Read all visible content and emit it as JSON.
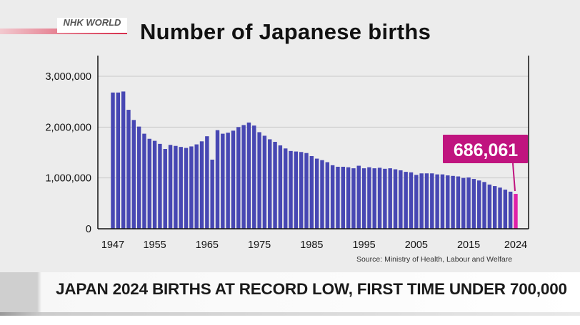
{
  "broadcaster": {
    "name": "NHK WORLD",
    "region": "JAPAN"
  },
  "headline": "JAPAN 2024 BIRTHS AT RECORD LOW, FIRST TIME UNDER 700,000",
  "chart_data": {
    "type": "bar",
    "title": "Number of Japanese births",
    "source": "Source: Ministry of Health, Labour and Welfare",
    "xlabel": "",
    "ylabel": "",
    "ylim": [
      0,
      3000000
    ],
    "yticks": [
      0,
      1000000,
      2000000,
      3000000
    ],
    "ytick_labels": [
      "0",
      "1,000,000",
      "2,000,000",
      "3,000,000"
    ],
    "xtick_labels": [
      "1947",
      "1955",
      "1965",
      "1975",
      "1985",
      "1995",
      "2005",
      "2015",
      "2024"
    ],
    "grid": true,
    "colors": {
      "bar": "#4747b3",
      "highlight": "#e020a8",
      "callout": "#c0147f"
    },
    "highlight": {
      "year": 2024,
      "label": "686,061"
    },
    "years": [
      1947,
      1948,
      1949,
      1950,
      1951,
      1952,
      1953,
      1954,
      1955,
      1956,
      1957,
      1958,
      1959,
      1960,
      1961,
      1962,
      1963,
      1964,
      1965,
      1966,
      1967,
      1968,
      1969,
      1970,
      1971,
      1972,
      1973,
      1974,
      1975,
      1976,
      1977,
      1978,
      1979,
      1980,
      1981,
      1982,
      1983,
      1984,
      1985,
      1986,
      1987,
      1988,
      1989,
      1990,
      1991,
      1992,
      1993,
      1994,
      1995,
      1996,
      1997,
      1998,
      1999,
      2000,
      2001,
      2002,
      2003,
      2004,
      2005,
      2006,
      2007,
      2008,
      2009,
      2010,
      2011,
      2012,
      2013,
      2014,
      2015,
      2016,
      2017,
      2018,
      2019,
      2020,
      2021,
      2022,
      2023,
      2024
    ],
    "values": [
      2680000,
      2680000,
      2700000,
      2340000,
      2140000,
      2010000,
      1870000,
      1770000,
      1730000,
      1670000,
      1570000,
      1650000,
      1630000,
      1610000,
      1590000,
      1620000,
      1660000,
      1720000,
      1820000,
      1360000,
      1940000,
      1870000,
      1890000,
      1930000,
      2000000,
      2040000,
      2090000,
      2030000,
      1900000,
      1830000,
      1760000,
      1710000,
      1640000,
      1580000,
      1530000,
      1520000,
      1510000,
      1490000,
      1430000,
      1380000,
      1350000,
      1310000,
      1250000,
      1220000,
      1220000,
      1210000,
      1190000,
      1240000,
      1190000,
      1210000,
      1190000,
      1200000,
      1180000,
      1190000,
      1170000,
      1150000,
      1120000,
      1110000,
      1060000,
      1090000,
      1090000,
      1090000,
      1070000,
      1070000,
      1050000,
      1040000,
      1030000,
      1000000,
      1010000,
      980000,
      950000,
      920000,
      870000,
      840000,
      810000,
      770000,
      730000,
      686061
    ]
  }
}
